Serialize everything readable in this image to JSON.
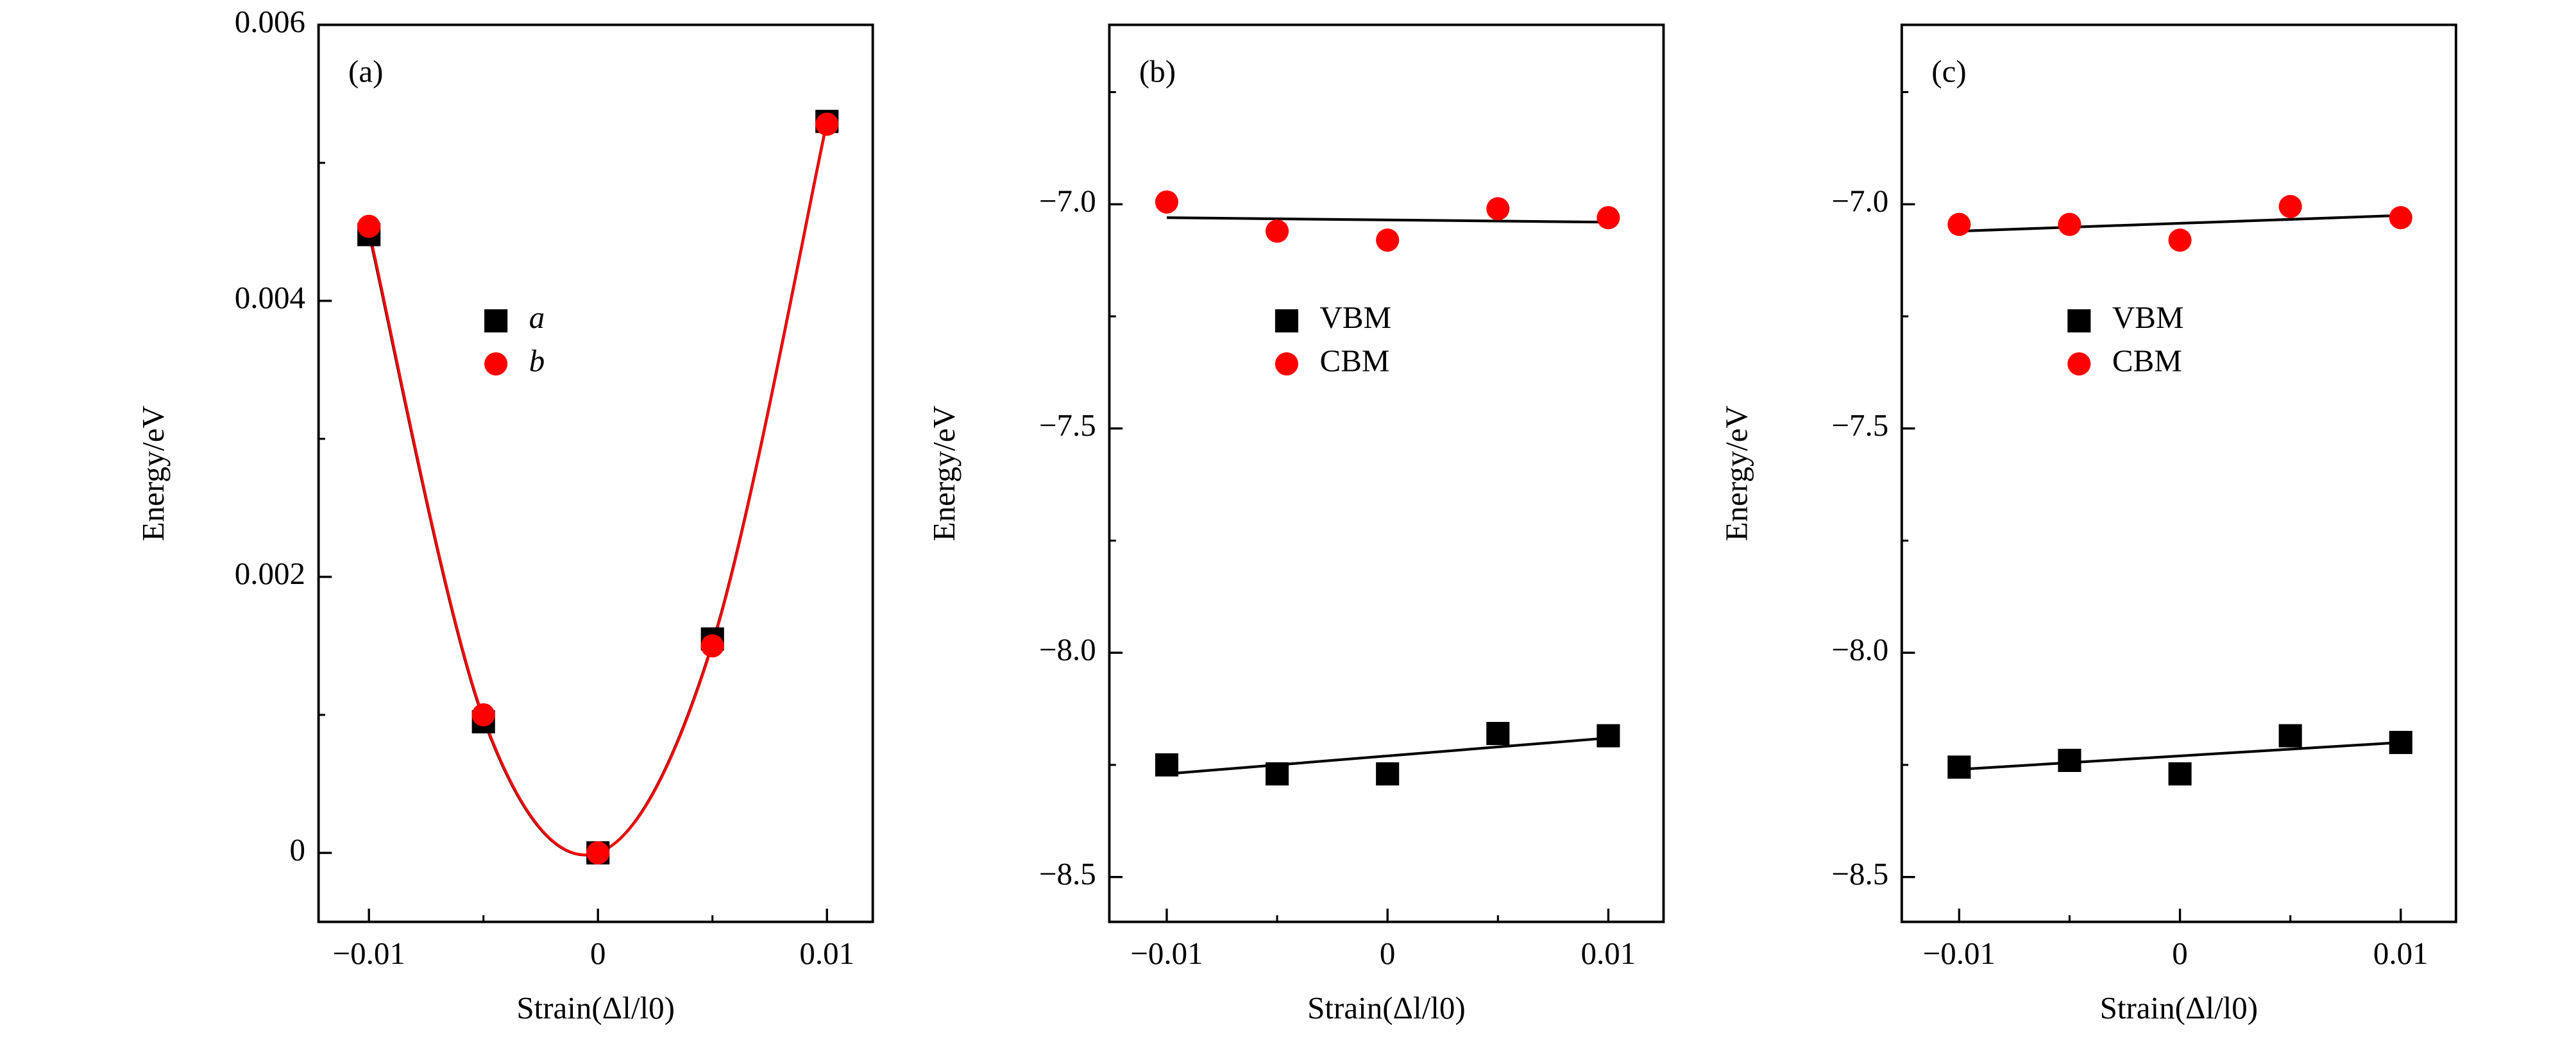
{
  "chart_data": [
    {
      "type": "scatter",
      "panel_label": "(a)",
      "x_label": "Strain(Δl/l0)",
      "y_label": "Energy/eV",
      "x": [
        -0.01,
        -0.005,
        0,
        0.005,
        0.01
      ],
      "series": [
        {
          "name": "a",
          "color": "#000000",
          "marker": "square",
          "values": [
            0.00448,
            0.00095,
            0,
            0.00155,
            0.0053
          ]
        },
        {
          "name": "b",
          "color": "#ff0000",
          "marker": "circle",
          "values": [
            0.00454,
            0.001,
            0,
            0.0015,
            0.00528
          ]
        }
      ],
      "fits": [
        {
          "color": "#000000",
          "x": [
            -0.01,
            -0.005,
            0,
            0.005,
            0.01
          ],
          "values": [
            0.00449,
            0.00097,
            0,
            0.00152,
            0.0053
          ]
        },
        {
          "color": "#ff0000",
          "x": [
            -0.01,
            -0.005,
            0,
            0.005,
            0.01
          ],
          "values": [
            0.00451,
            0.00098,
            0,
            0.00151,
            0.00529
          ]
        }
      ],
      "xlim": [
        -0.0122,
        0.012
      ],
      "ylim": [
        -0.0005,
        0.006
      ],
      "xticks": [
        {
          "value": -0.01,
          "label": "−0.01"
        },
        0,
        0.01
      ],
      "xminor": [
        -0.005,
        0.005
      ],
      "yticks": [
        0,
        0.002,
        0.004,
        0.006
      ],
      "yminor": [
        0.001,
        0.003,
        0.005
      ],
      "legend": "center left"
    },
    {
      "type": "scatter",
      "panel_label": "(b)",
      "x_label": "Strain(Δl/l0)",
      "y_label": "Energy/eV",
      "x": [
        -0.01,
        -0.005,
        0,
        0.005,
        0.01
      ],
      "series": [
        {
          "name": "VBM",
          "color": "#000000",
          "marker": "square",
          "values": [
            -8.25,
            -8.27,
            -8.27,
            -8.18,
            -8.185
          ]
        },
        {
          "name": "CBM",
          "color": "#ff0000",
          "marker": "circle",
          "values": [
            -6.995,
            -7.06,
            -7.08,
            -7.01,
            -7.03
          ]
        }
      ],
      "fits": [
        {
          "color": "#000000",
          "x": [
            -0.01,
            0.01
          ],
          "values": [
            -8.27,
            -8.19
          ]
        },
        {
          "color": "#000000",
          "x": [
            -0.01,
            0.01
          ],
          "values": [
            -7.03,
            -7.04
          ]
        }
      ],
      "xlim": [
        -0.0126,
        0.0125
      ],
      "ylim": [
        -8.6,
        -6.6
      ],
      "xticks": [
        {
          "value": -0.01,
          "label": "−0.01"
        },
        0,
        0.01
      ],
      "xminor": [
        -0.005,
        0.005
      ],
      "yticks": [
        {
          "value": -8.5,
          "label": "−8.5"
        },
        {
          "value": -8.0,
          "label": "−8.0"
        },
        {
          "value": -7.5,
          "label": "−7.5"
        },
        {
          "value": -7.0,
          "label": "−7.0"
        }
      ],
      "yminor": [
        -8.25,
        -7.75,
        -7.25,
        -6.75
      ],
      "legend": "center left"
    },
    {
      "type": "scatter",
      "panel_label": "(c)",
      "x_label": "Strain(Δl/l0)",
      "y_label": "Energy/eV",
      "x": [
        -0.01,
        -0.005,
        0,
        0.005,
        0.01
      ],
      "series": [
        {
          "name": "VBM",
          "color": "#000000",
          "marker": "square",
          "values": [
            -8.255,
            -8.24,
            -8.27,
            -8.185,
            -8.2
          ]
        },
        {
          "name": "CBM",
          "color": "#ff0000",
          "marker": "circle",
          "values": [
            -7.045,
            -7.045,
            -7.08,
            -7.005,
            -7.03
          ]
        }
      ],
      "fits": [
        {
          "color": "#000000",
          "x": [
            -0.01,
            0.01
          ],
          "values": [
            -8.26,
            -8.2
          ]
        },
        {
          "color": "#000000",
          "x": [
            -0.01,
            0.01
          ],
          "values": [
            -7.06,
            -7.025
          ]
        }
      ],
      "xlim": [
        -0.0126,
        0.0125
      ],
      "ylim": [
        -8.6,
        -6.6
      ],
      "xticks": [
        {
          "value": -0.01,
          "label": "−0.01"
        },
        0,
        0.01
      ],
      "xminor": [
        -0.005,
        0.005
      ],
      "yticks": [
        {
          "value": -8.5,
          "label": "−8.5"
        },
        {
          "value": -8.0,
          "label": "−8.0"
        },
        {
          "value": -7.5,
          "label": "−7.5"
        },
        {
          "value": -7.0,
          "label": "−7.0"
        }
      ],
      "yminor": [
        -8.25,
        -7.75,
        -7.25,
        -6.75
      ],
      "legend": "center left"
    }
  ]
}
